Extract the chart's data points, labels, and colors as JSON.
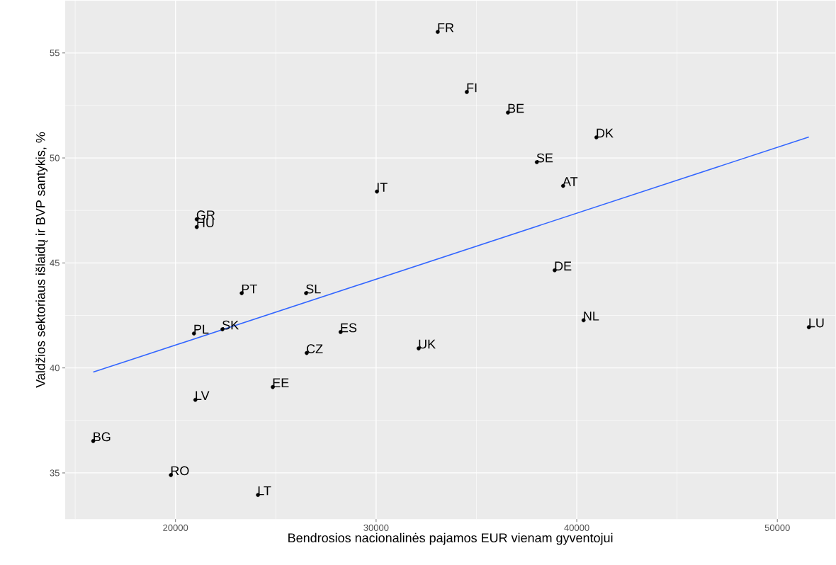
{
  "chart_data": {
    "type": "scatter",
    "xlabel": "Bendrosios nacionalinės pajamos EUR vienam gyventojui",
    "ylabel": "Valdžios sektoriaus išlaidų ir BVP santykis, %",
    "xlim": [
      14500,
      52900
    ],
    "ylim": [
      32.8,
      57.5
    ],
    "xticks": [
      20000,
      30000,
      40000,
      50000
    ],
    "yticks": [
      35,
      40,
      45,
      50,
      55
    ],
    "grid": true,
    "series": [
      {
        "color": "#000000",
        "marker": "circle",
        "x": [
          33070,
          34520,
          36570,
          40980,
          38010,
          39320,
          30040,
          21060,
          21060,
          38900,
          23300,
          26510,
          40340,
          51570,
          20920,
          22340,
          28230,
          32120,
          26540,
          24850,
          20990,
          15900,
          19770,
          24110
        ],
        "values": [
          56.0,
          53.14,
          52.16,
          50.98,
          49.8,
          48.67,
          48.4,
          47.08,
          46.71,
          44.65,
          43.56,
          43.56,
          42.27,
          41.94,
          41.64,
          41.84,
          41.71,
          40.93,
          40.71,
          39.09,
          38.48,
          36.52,
          34.9,
          33.95
        ]
      },
      {
        "type": "line",
        "color": "#3366ff",
        "x": [
          15900,
          51570
        ],
        "values": [
          39.8,
          51.0
        ]
      }
    ],
    "annotations": [
      {
        "text": "FR",
        "x": 33070,
        "y": 56.0
      },
      {
        "text": "FI",
        "x": 34520,
        "y": 53.14
      },
      {
        "text": "BE",
        "x": 36570,
        "y": 52.16
      },
      {
        "text": "DK",
        "x": 40980,
        "y": 50.98
      },
      {
        "text": "SE",
        "x": 38010,
        "y": 49.8
      },
      {
        "text": "AT",
        "x": 39320,
        "y": 48.67
      },
      {
        "text": "IT",
        "x": 30040,
        "y": 48.4
      },
      {
        "text": "GR",
        "x": 21060,
        "y": 47.08
      },
      {
        "text": "HU",
        "x": 21060,
        "y": 46.71
      },
      {
        "text": "DE",
        "x": 38900,
        "y": 44.65
      },
      {
        "text": "PT",
        "x": 23300,
        "y": 43.56
      },
      {
        "text": "SL",
        "x": 26510,
        "y": 43.56
      },
      {
        "text": "NL",
        "x": 40340,
        "y": 42.27
      },
      {
        "text": "LU",
        "x": 51570,
        "y": 41.94
      },
      {
        "text": "PL",
        "x": 20920,
        "y": 41.64
      },
      {
        "text": "SK",
        "x": 22340,
        "y": 41.84
      },
      {
        "text": "ES",
        "x": 28230,
        "y": 41.71
      },
      {
        "text": "UK",
        "x": 32120,
        "y": 40.93
      },
      {
        "text": "CZ",
        "x": 26540,
        "y": 40.71
      },
      {
        "text": "EE",
        "x": 24850,
        "y": 39.09
      },
      {
        "text": "LV",
        "x": 20990,
        "y": 38.48
      },
      {
        "text": "BG",
        "x": 15900,
        "y": 36.52
      },
      {
        "text": "RO",
        "x": 19770,
        "y": 34.9
      },
      {
        "text": "LT",
        "x": 24110,
        "y": 33.95
      }
    ]
  }
}
